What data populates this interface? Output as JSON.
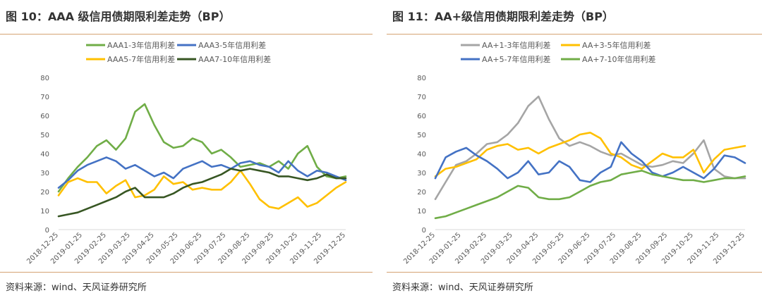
{
  "figures": [
    {
      "title": "图 10：AAA 级信用债期限利差走势（BP）",
      "source": "资料来源：wind、天风证券研究所"
    },
    {
      "title": "图 11：AA+级信用债期限利差走势（BP）",
      "source": "资料来源：wind、天风证券研究所"
    }
  ],
  "chart_data": [
    {
      "type": "line",
      "title": "图 10：AAA 级信用债期限利差走势（BP）",
      "xlabel": "",
      "ylabel": "",
      "ylim": [
        0,
        80
      ],
      "yticks": [
        "0",
        "10",
        "20",
        "30",
        "40",
        "50",
        "60",
        "70",
        "80"
      ],
      "x_labels": [
        "2018-12-25",
        "2019-01-25",
        "2019-02-25",
        "2019-03-25",
        "2019-04-25",
        "2019-05-25",
        "2019-06-25",
        "2019-07-25",
        "2019-08-25",
        "2019-09-25",
        "2019-10-25",
        "2019-11-25",
        "2019-12-25"
      ],
      "series": [
        {
          "name": "AAA1-3年信用利差",
          "color": "#70ad47",
          "values": [
            20,
            27,
            33,
            38,
            44,
            47,
            42,
            48,
            62,
            66,
            55,
            46,
            43,
            44,
            48,
            46,
            40,
            42,
            38,
            33,
            34,
            35,
            33,
            36,
            32,
            40,
            44,
            33,
            28,
            27,
            28
          ]
        },
        {
          "name": "AAA3-5年信用利差",
          "color": "#4472c4",
          "values": [
            22,
            26,
            31,
            34,
            36,
            38,
            36,
            32,
            34,
            31,
            28,
            30,
            27,
            32,
            34,
            36,
            33,
            34,
            32,
            35,
            36,
            34,
            33,
            30,
            36,
            31,
            28,
            31,
            30,
            28,
            26
          ]
        },
        {
          "name": "AAA5-7年信用利差",
          "color": "#ffc000",
          "values": [
            18,
            25,
            27,
            25,
            25,
            19,
            23,
            26,
            17,
            18,
            21,
            28,
            24,
            25,
            21,
            22,
            21,
            21,
            25,
            31,
            24,
            16,
            12,
            11,
            14,
            17,
            12,
            14,
            18,
            22,
            25
          ]
        },
        {
          "name": "AAA7-10年信用利差",
          "color": "#375623",
          "values": [
            7,
            8,
            9,
            11,
            13,
            15,
            17,
            20,
            22,
            17,
            17,
            17,
            19,
            22,
            24,
            25,
            27,
            29,
            32,
            31,
            32,
            31,
            30,
            28,
            28,
            27,
            26,
            27,
            29,
            27,
            27
          ]
        }
      ]
    },
    {
      "type": "line",
      "title": "图 11：AA+级信用债期限利差走势（BP）",
      "xlabel": "",
      "ylabel": "",
      "ylim": [
        0,
        80
      ],
      "yticks": [
        "0",
        "10",
        "20",
        "30",
        "40",
        "50",
        "60",
        "70",
        "80"
      ],
      "x_labels": [
        "2018-12-25",
        "2019-01-25",
        "2019-02-25",
        "2019-03-25",
        "2019-04-25",
        "2019-05-25",
        "2019-06-25",
        "2019-07-25",
        "2019-08-25",
        "2019-09-25",
        "2019-10-25",
        "2019-11-25",
        "2019-12-25"
      ],
      "series": [
        {
          "name": "AA+1-3年信用利差",
          "color": "#a5a5a5",
          "values": [
            16,
            25,
            34,
            36,
            40,
            45,
            46,
            50,
            56,
            65,
            70,
            58,
            48,
            44,
            46,
            44,
            41,
            39,
            40,
            37,
            34,
            33,
            34,
            36,
            35,
            40,
            47,
            32,
            28,
            27,
            27
          ]
        },
        {
          "name": "AA+3-5年信用利差",
          "color": "#ffc000",
          "values": [
            28,
            32,
            33,
            35,
            37,
            42,
            44,
            45,
            42,
            43,
            40,
            43,
            45,
            47,
            50,
            51,
            48,
            40,
            38,
            34,
            32,
            36,
            40,
            38,
            38,
            42,
            30,
            37,
            42,
            43,
            44
          ]
        },
        {
          "name": "AA+5-7年信用利差",
          "color": "#4472c4",
          "values": [
            27,
            38,
            41,
            43,
            39,
            36,
            32,
            27,
            30,
            36,
            29,
            30,
            36,
            33,
            26,
            25,
            30,
            33,
            46,
            40,
            36,
            30,
            28,
            30,
            33,
            30,
            27,
            32,
            39,
            38,
            35
          ]
        },
        {
          "name": "AA+7-10年信用利差",
          "color": "#70ad47",
          "values": [
            6,
            7,
            9,
            11,
            13,
            15,
            17,
            20,
            23,
            22,
            17,
            16,
            16,
            17,
            20,
            23,
            25,
            26,
            29,
            30,
            31,
            29,
            28,
            27,
            26,
            26,
            25,
            26,
            27,
            27,
            28
          ]
        }
      ]
    }
  ]
}
